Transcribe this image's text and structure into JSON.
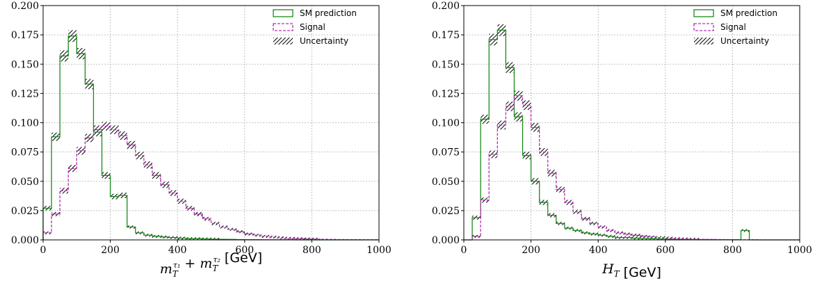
{
  "chart_data": [
    {
      "type": "histogram",
      "xlim": [
        0,
        1000
      ],
      "ylim": [
        0,
        0.2
      ],
      "grid": true,
      "legend_placement": "top-right",
      "x_ticks": [
        "0",
        "200",
        "400",
        "600",
        "800",
        "1000"
      ],
      "y_ticks": [
        "0.000",
        "0.025",
        "0.050",
        "0.075",
        "0.100",
        "0.125",
        "0.150",
        "0.175",
        "0.200"
      ],
      "xlabel_math": "m_T^{τ1} + m_T^{τ2}",
      "xlabel_unit": "[GeV]",
      "bin_width": 25,
      "series": [
        {
          "name": "SM prediction",
          "color": "#1a8a1a",
          "style": "solid",
          "values": [
            0.027,
            0.088,
            0.157,
            0.174,
            0.159,
            0.133,
            0.092,
            0.055,
            0.037,
            0.038,
            0.011,
            0.006,
            0.004,
            0.003,
            0.0025,
            0.002,
            0.0015,
            0.001,
            0.001,
            0.0008,
            0.0006,
            0.0005,
            0.0004,
            0.0003,
            0.0002,
            0.0002,
            0.0001,
            0.0001,
            0.0001,
            0.0001,
            0,
            0,
            0,
            0,
            0,
            0,
            0,
            0,
            0,
            0
          ]
        },
        {
          "name": "Signal",
          "color": "#b030b0",
          "style": "dashed",
          "values": [
            0.006,
            0.022,
            0.042,
            0.061,
            0.076,
            0.087,
            0.094,
            0.097,
            0.094,
            0.089,
            0.081,
            0.072,
            0.064,
            0.055,
            0.047,
            0.04,
            0.033,
            0.027,
            0.022,
            0.018,
            0.014,
            0.011,
            0.009,
            0.007,
            0.005,
            0.004,
            0.003,
            0.0024,
            0.0018,
            0.0013,
            0.001,
            0.0008,
            0.0006,
            0.0005,
            0.0004,
            0.0003,
            0.0002,
            0.0002,
            0.0001,
            0.0001
          ]
        }
      ],
      "uncertainty_label": "Uncertainty"
    },
    {
      "type": "histogram",
      "xlim": [
        0,
        1000
      ],
      "ylim": [
        0,
        0.2
      ],
      "grid": true,
      "legend_placement": "top-right",
      "x_ticks": [
        "0",
        "200",
        "400",
        "600",
        "800",
        "1000"
      ],
      "y_ticks": [
        "0.000",
        "0.025",
        "0.050",
        "0.075",
        "0.100",
        "0.125",
        "0.150",
        "0.175",
        "0.200"
      ],
      "xlabel_math": "H_T",
      "xlabel_unit": "[GeV]",
      "bin_width": 25,
      "series": [
        {
          "name": "SM prediction",
          "color": "#1a8a1a",
          "style": "solid",
          "values": [
            0,
            0.019,
            0.103,
            0.171,
            0.179,
            0.147,
            0.105,
            0.072,
            0.05,
            0.032,
            0.021,
            0.014,
            0.01,
            0.008,
            0.006,
            0.005,
            0.004,
            0.003,
            0.002,
            0.002,
            0.0015,
            0.0012,
            0.001,
            0.0008,
            0.0006,
            0.0005,
            0.0004,
            0.0003,
            0.0002,
            0.0002,
            0.0001,
            0.0001,
            0.0001,
            0.008,
            0,
            0,
            0,
            0,
            0,
            0
          ]
        },
        {
          "name": "Signal",
          "color": "#b030b0",
          "style": "dashed",
          "values": [
            0,
            0.003,
            0.034,
            0.073,
            0.098,
            0.114,
            0.123,
            0.115,
            0.096,
            0.075,
            0.057,
            0.043,
            0.032,
            0.024,
            0.018,
            0.014,
            0.011,
            0.008,
            0.006,
            0.005,
            0.004,
            0.003,
            0.0025,
            0.002,
            0.0015,
            0.001,
            0.0008,
            0.0006,
            0.0005,
            0.0004,
            0.0003,
            0.0002,
            0.0002,
            0.0001,
            0.0001,
            0,
            0,
            0,
            0,
            0
          ]
        }
      ],
      "uncertainty_label": "Uncertainty"
    }
  ]
}
